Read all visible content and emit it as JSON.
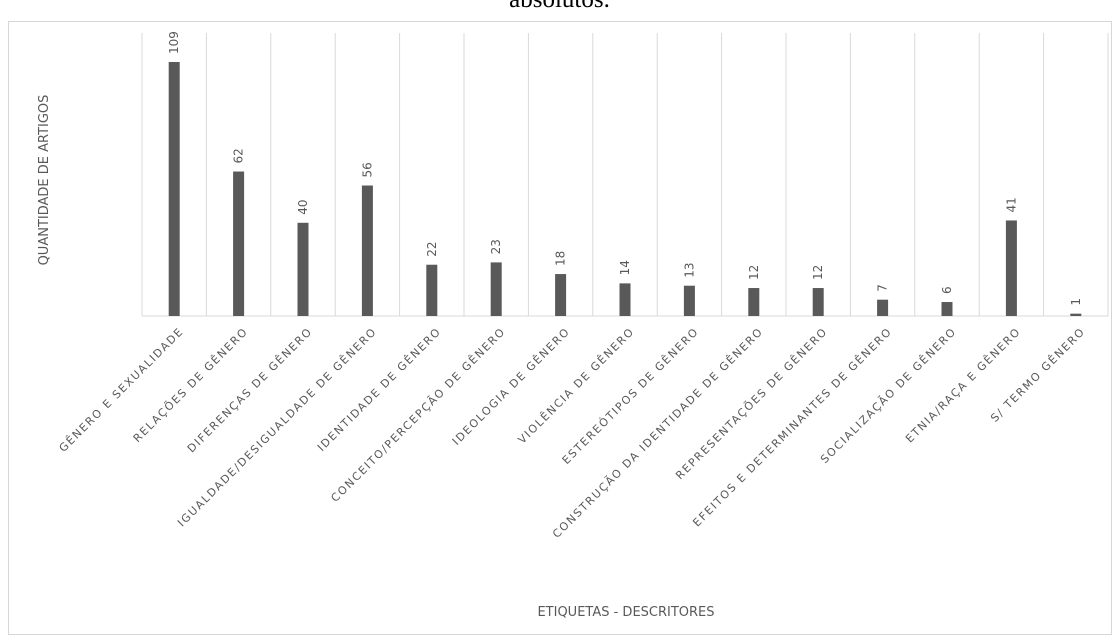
{
  "title": "absolutos.",
  "chart_data": {
    "type": "bar",
    "xlabel": "ETIQUETAS - DESCRITORES",
    "ylabel": "QUANTIDADE DE ARTIGOS",
    "categories": [
      "GÊNERO E SEXUALIDADE",
      "RELAÇÕES DE GÊNERO",
      "DIFERENÇAS DE GÊNERO",
      "IGUALDADE/DESIGUALDADE DE GÊNERO",
      "IDENTIDADE DE GÊNERO",
      "CONCEITO/PERCEPÇÃO DE GÊNERO",
      "IDEOLOGIA DE GÊNERO",
      "VIOLÊNCIA DE GÊNERO",
      "ESTEREÓTIPOS DE GÊNERO",
      "CONSTRUÇÃO DA IDENTIDADE DE GÊNERO",
      "REPRESENTAÇÕES DE GÊNERO",
      "EFEITOS E DETERMINANTES DE GÊNERO",
      "SOCIALIZAÇÃO DE GÊNERO",
      "ETNIA/RAÇA E GÊNERO",
      "S/ TERMO GÊNERO"
    ],
    "values": [
      109,
      62,
      40,
      56,
      22,
      23,
      18,
      14,
      13,
      12,
      12,
      7,
      6,
      41,
      1
    ],
    "ylim": [
      0,
      120
    ],
    "grid": true,
    "legend": "none",
    "colors": {
      "bar": "#595959",
      "grid": "#d9d9d9",
      "text": "#595959"
    }
  }
}
